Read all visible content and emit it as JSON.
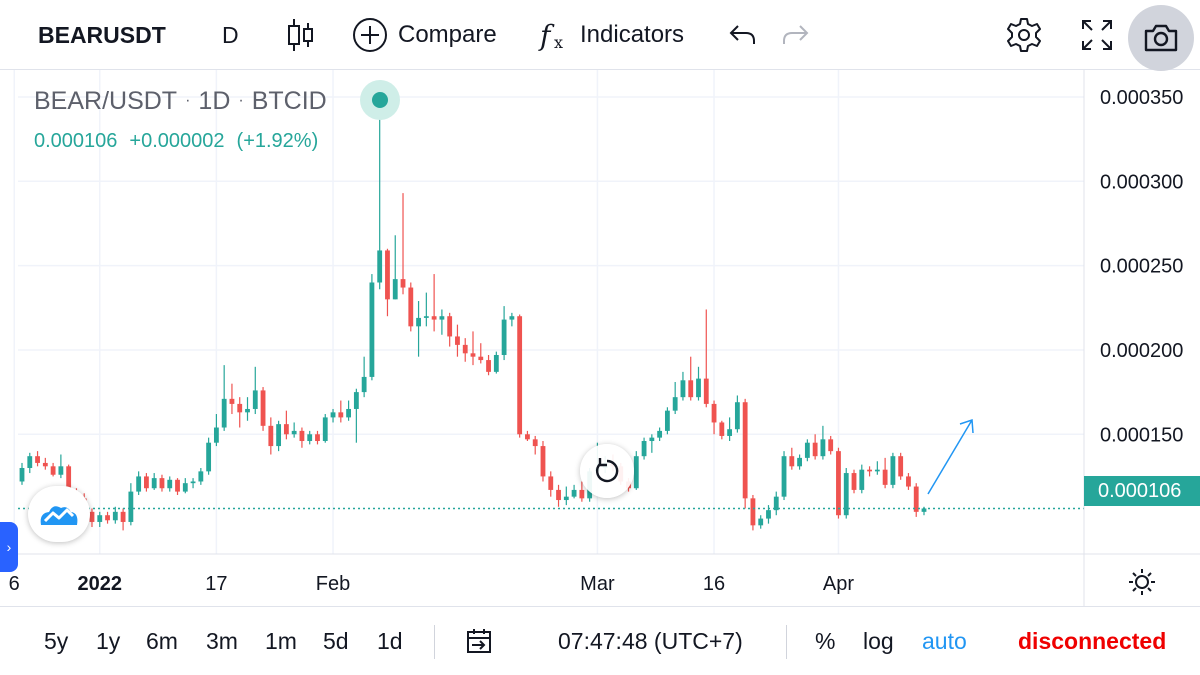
{
  "toolbar": {
    "symbol": "BEARUSDT",
    "interval": "D",
    "compare_label": "Compare",
    "indicators_label": "Indicators",
    "fx_glyph": "f",
    "fx_sub": "x"
  },
  "legend": {
    "symbol": "BEAR/USDT",
    "interval": "1D",
    "exchange": "BTCID",
    "sep": "·",
    "last": "0.000106",
    "change": "+0.000002",
    "change_pct": "(+1.92%)"
  },
  "price_tag": "0.000106",
  "bottom": {
    "ranges": [
      "5y",
      "1y",
      "6m",
      "3m",
      "1m",
      "5d",
      "1d"
    ],
    "time": "07:47:48 (UTC+7)",
    "percent": "%",
    "log": "log",
    "auto": "auto",
    "status": "disconnected"
  },
  "colors": {
    "up": "#26a69a",
    "down": "#ef5350",
    "accent": "#2196f3",
    "status": "#ef0000"
  },
  "icons": [
    "candles-icon",
    "plus-circle-icon",
    "fx-icon",
    "undo-icon",
    "redo-icon",
    "gear-icon",
    "fullscreen-icon",
    "camera-icon",
    "reset-icon",
    "tradingview-logo-icon",
    "calendar-range-icon"
  ],
  "chart_data": {
    "type": "candlestick",
    "x_ticks": [
      "6",
      "2022",
      "17",
      "Feb",
      "Mar",
      "16",
      "Apr"
    ],
    "y_ticks": [
      "0.000150",
      "0.000200",
      "0.000250",
      "0.000300",
      "0.000350"
    ],
    "ylim": [
      7.9e-05,
      0.000366
    ],
    "current_price": 0.000106,
    "grid": true,
    "candles": [
      [
        0.000122,
        0.00013,
        0.000133,
        0.00012
      ],
      [
        0.00013,
        0.000137,
        0.000139,
        0.000127
      ],
      [
        0.000137,
        0.000133,
        0.00014,
        0.000131
      ],
      [
        0.000133,
        0.000131,
        0.000136,
        0.000129
      ],
      [
        0.000131,
        0.000126,
        0.000133,
        0.000125
      ],
      [
        0.000126,
        0.000131,
        0.000138,
        0.000124
      ],
      [
        0.000131,
        0.000116,
        0.000132,
        0.000114
      ],
      [
        0.000116,
        0.000112,
        0.000118,
        0.000106
      ],
      [
        0.000112,
        0.000104,
        0.000115,
        0.0001
      ],
      [
        0.000104,
        9.8e-05,
        0.000106,
        9.5e-05
      ],
      [
        9.8e-05,
        0.000102,
        0.000104,
        9.5e-05
      ],
      [
        0.000102,
        9.9e-05,
        0.000104,
        9.7e-05
      ],
      [
        9.9e-05,
        0.000104,
        0.000107,
        9.7e-05
      ],
      [
        0.000104,
        9.8e-05,
        0.000106,
        9.3e-05
      ],
      [
        9.8e-05,
        0.000116,
        0.000121,
        9.6e-05
      ],
      [
        0.000116,
        0.000125,
        0.000128,
        0.000114
      ],
      [
        0.000125,
        0.000118,
        0.000127,
        0.000116
      ],
      [
        0.000118,
        0.000124,
        0.000127,
        0.000117
      ],
      [
        0.000124,
        0.000118,
        0.000126,
        0.000116
      ],
      [
        0.000118,
        0.000123,
        0.000125,
        0.000116
      ],
      [
        0.000123,
        0.000116,
        0.000124,
        0.000114
      ],
      [
        0.000116,
        0.000121,
        0.000124,
        0.000115
      ],
      [
        0.000121,
        0.000122,
        0.000124,
        0.000118
      ],
      [
        0.000122,
        0.000128,
        0.00013,
        0.00012
      ],
      [
        0.000128,
        0.000145,
        0.000148,
        0.000126
      ],
      [
        0.000145,
        0.000154,
        0.000162,
        0.000143
      ],
      [
        0.000154,
        0.000171,
        0.000191,
        0.000152
      ],
      [
        0.000171,
        0.000168,
        0.00018,
        0.000162
      ],
      [
        0.000168,
        0.000163,
        0.000172,
        0.000154
      ],
      [
        0.000163,
        0.000165,
        0.000172,
        0.000158
      ],
      [
        0.000165,
        0.000176,
        0.00019,
        0.000162
      ],
      [
        0.000176,
        0.000155,
        0.000178,
        0.000152
      ],
      [
        0.000155,
        0.000143,
        0.00016,
        0.000138
      ],
      [
        0.000143,
        0.000156,
        0.000158,
        0.00014
      ],
      [
        0.000156,
        0.00015,
        0.000164,
        0.000147
      ],
      [
        0.00015,
        0.000152,
        0.000157,
        0.000148
      ],
      [
        0.000152,
        0.000146,
        0.000154,
        0.000142
      ],
      [
        0.000146,
        0.00015,
        0.000152,
        0.000144
      ],
      [
        0.00015,
        0.000146,
        0.000152,
        0.000144
      ],
      [
        0.000146,
        0.00016,
        0.000162,
        0.000145
      ],
      [
        0.00016,
        0.000163,
        0.000165,
        0.000157
      ],
      [
        0.000163,
        0.00016,
        0.00017,
        0.000157
      ],
      [
        0.00016,
        0.000165,
        0.00017,
        0.000158
      ],
      [
        0.000165,
        0.000175,
        0.000177,
        0.000145
      ],
      [
        0.000175,
        0.000184,
        0.000196,
        0.000172
      ],
      [
        0.000184,
        0.00024,
        0.000245,
        0.000182
      ],
      [
        0.00024,
        0.000259,
        0.00035,
        0.000236
      ],
      [
        0.000259,
        0.00023,
        0.00026,
        0.00022
      ],
      [
        0.00023,
        0.000242,
        0.000268,
        0.00023
      ],
      [
        0.000242,
        0.000237,
        0.000293,
        0.000233
      ],
      [
        0.000237,
        0.000214,
        0.00024,
        0.000211
      ],
      [
        0.000214,
        0.000219,
        0.000229,
        0.000196
      ],
      [
        0.000219,
        0.00022,
        0.000234,
        0.000214
      ],
      [
        0.00022,
        0.000218,
        0.000245,
        0.000211
      ],
      [
        0.000218,
        0.00022,
        0.000224,
        0.000209
      ],
      [
        0.00022,
        0.000208,
        0.000222,
        0.000202
      ],
      [
        0.000208,
        0.000203,
        0.000215,
        0.000196
      ],
      [
        0.000203,
        0.000198,
        0.000207,
        0.000193
      ],
      [
        0.000198,
        0.000196,
        0.000211,
        0.000191
      ],
      [
        0.000196,
        0.000194,
        0.000204,
        0.000192
      ],
      [
        0.000194,
        0.000187,
        0.000197,
        0.000185
      ],
      [
        0.000187,
        0.000197,
        0.000199,
        0.000186
      ],
      [
        0.000197,
        0.000218,
        0.000226,
        0.000194
      ],
      [
        0.000218,
        0.00022,
        0.000222,
        0.000214
      ],
      [
        0.00022,
        0.00015,
        0.000221,
        0.000148
      ],
      [
        0.00015,
        0.000147,
        0.000152,
        0.000146
      ],
      [
        0.000147,
        0.000143,
        0.000149,
        0.000138
      ],
      [
        0.000143,
        0.000125,
        0.000146,
        0.000122
      ],
      [
        0.000125,
        0.000117,
        0.000128,
        0.000113
      ],
      [
        0.000117,
        0.000111,
        0.00012,
        0.000107
      ],
      [
        0.000111,
        0.000113,
        0.000119,
        0.000108
      ],
      [
        0.000113,
        0.000117,
        0.00012,
        0.000112
      ],
      [
        0.000117,
        0.000112,
        0.000122,
        0.00011
      ],
      [
        0.000112,
        0.000128,
        0.00013,
        0.00011
      ],
      [
        0.000128,
        0.00013,
        0.000145,
        0.000126
      ],
      [
        0.00013,
        0.000133,
        0.000137,
        0.000127
      ],
      [
        0.000133,
        0.000131,
        0.000138,
        0.000128
      ],
      [
        0.000131,
        0.000122,
        0.000133,
        0.00012
      ],
      [
        0.000122,
        0.000118,
        0.000124,
        0.000116
      ],
      [
        0.000118,
        0.000137,
        0.00014,
        0.000117
      ],
      [
        0.000137,
        0.000146,
        0.000148,
        0.000135
      ],
      [
        0.000146,
        0.000148,
        0.00015,
        0.000139
      ],
      [
        0.000148,
        0.000152,
        0.000154,
        0.000146
      ],
      [
        0.000152,
        0.000164,
        0.000166,
        0.00015
      ],
      [
        0.000164,
        0.000172,
        0.000181,
        0.000162
      ],
      [
        0.000172,
        0.000182,
        0.000187,
        0.00017
      ],
      [
        0.000182,
        0.000172,
        0.000196,
        0.00017
      ],
      [
        0.000172,
        0.000183,
        0.00019,
        0.00017
      ],
      [
        0.000183,
        0.000168,
        0.000224,
        0.000166
      ],
      [
        0.000168,
        0.000157,
        0.00017,
        0.00015
      ],
      [
        0.000157,
        0.000149,
        0.000158,
        0.000147
      ],
      [
        0.000149,
        0.000153,
        0.00016,
        0.000146
      ],
      [
        0.000153,
        0.000169,
        0.000173,
        0.000151
      ],
      [
        0.000169,
        0.000112,
        0.000171,
        0.000106
      ],
      [
        0.000112,
        9.6e-05,
        0.000114,
        9.3e-05
      ],
      [
        9.6e-05,
        0.0001,
        0.000102,
        9.4e-05
      ],
      [
        0.0001,
        0.000105,
        0.000108,
        9.7e-05
      ],
      [
        0.000105,
        0.000113,
        0.000116,
        0.000102
      ],
      [
        0.000113,
        0.000137,
        0.00014,
        0.000111
      ],
      [
        0.000137,
        0.000131,
        0.000142,
        0.000129
      ],
      [
        0.000131,
        0.000136,
        0.000138,
        0.000129
      ],
      [
        0.000136,
        0.000145,
        0.000147,
        0.000134
      ],
      [
        0.000145,
        0.000137,
        0.00015,
        0.000135
      ],
      [
        0.000137,
        0.000147,
        0.000155,
        0.000135
      ],
      [
        0.000147,
        0.00014,
        0.000149,
        0.000138
      ],
      [
        0.00014,
        0.000102,
        0.000142,
        0.0001
      ],
      [
        0.000102,
        0.000127,
        0.00013,
        0.0001
      ],
      [
        0.000127,
        0.000117,
        0.000129,
        0.000115
      ],
      [
        0.000117,
        0.000129,
        0.000132,
        0.000115
      ],
      [
        0.000129,
        0.000128,
        0.000131,
        0.000125
      ],
      [
        0.000128,
        0.000129,
        0.000134,
        0.000126
      ],
      [
        0.000129,
        0.00012,
        0.000136,
        0.000118
      ],
      [
        0.00012,
        0.000137,
        0.000139,
        0.000118
      ],
      [
        0.000137,
        0.000125,
        0.000139,
        0.000123
      ],
      [
        0.000125,
        0.000119,
        0.000127,
        0.000117
      ],
      [
        0.000119,
        0.000104,
        0.000121,
        0.000101
      ],
      [
        0.000104,
        0.000106,
        0.000107,
        0.000102
      ]
    ]
  }
}
